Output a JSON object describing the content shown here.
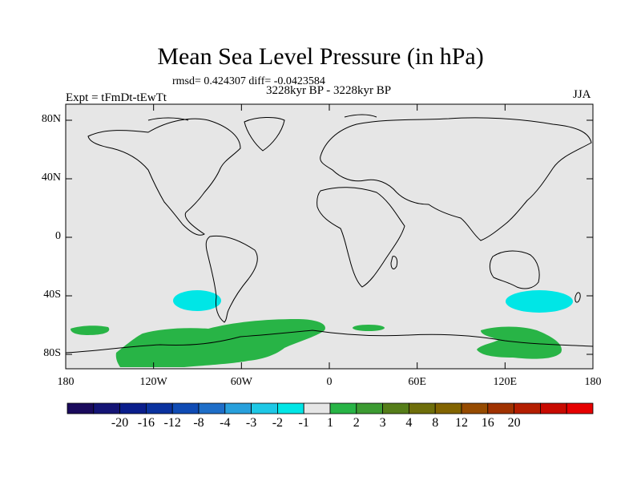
{
  "title": "Mean Sea Level Pressure (in hPa)",
  "stats": "rmsd= 0.424307 diff= -0.0423584",
  "period": "3228kyr BP - 3228kyr BP",
  "experiment": "Expt = tFmDt-tEwTt",
  "season": "JJA",
  "lat_axis": [
    {
      "label": "80N",
      "value": 80
    },
    {
      "label": "40N",
      "value": 40
    },
    {
      "label": "0",
      "value": 0
    },
    {
      "label": "40S",
      "value": -40
    },
    {
      "label": "80S",
      "value": -80
    }
  ],
  "lon_axis": [
    {
      "label": "180",
      "value": -180
    },
    {
      "label": "120W",
      "value": -120
    },
    {
      "label": "60W",
      "value": -60
    },
    {
      "label": "0",
      "value": 0
    },
    {
      "label": "60E",
      "value": 60
    },
    {
      "label": "120E",
      "value": 120
    },
    {
      "label": "180",
      "value": 180
    }
  ],
  "colorbar": {
    "colors": [
      "#1a0a5c",
      "#141475",
      "#0a1e8c",
      "#0a329f",
      "#0f4bb4",
      "#1e6ec8",
      "#28a0dc",
      "#1ec8e6",
      "#00e6e6",
      "#e6e6e6",
      "#28b446",
      "#3c9b32",
      "#557d19",
      "#6e6e0a",
      "#826400",
      "#964b00",
      "#a03200",
      "#b41e00",
      "#c80a00",
      "#e60000"
    ],
    "labels": [
      "-20",
      "-16",
      "-12",
      "-8",
      "-4",
      "-3",
      "-2",
      "-1",
      "1",
      "2",
      "3",
      "4",
      "8",
      "12",
      "16",
      "20"
    ]
  },
  "legend_meaning": {
    "background": "#e6e6e6",
    "positive_small": "#28b446",
    "negative_small": "#00e6e6"
  }
}
